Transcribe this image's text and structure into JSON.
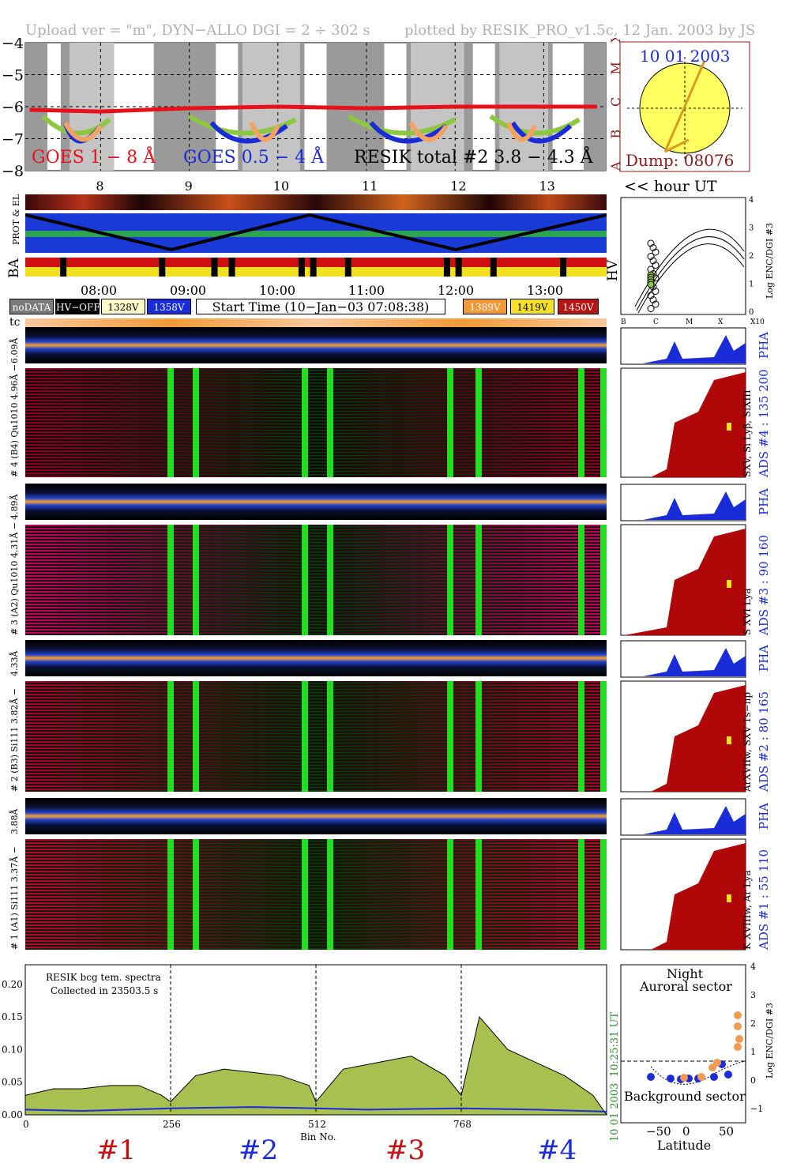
{
  "header": {
    "left": "Upload ver = \"m\", DYN−ALLO DGI =   2 ÷ 302 s",
    "right": "plotted by RESIK_PRO_v1.5c, 12 Jan. 2003 by JS"
  },
  "goes": {
    "label_goes18": "GOES 1 − 8 Å",
    "label_goes054": "GOES 0.5 − 4 Å",
    "label_resik": "RESIK total #2  3.8 − 4.3 Å",
    "yticks": [
      "−4",
      "−5",
      "−6",
      "−7",
      "−8"
    ],
    "xticks": [
      "8",
      "9",
      "10",
      "11",
      "12",
      "13"
    ],
    "class_letters": [
      "X",
      "M",
      "C",
      "B",
      "A"
    ],
    "hour_ut": "<< hour UT",
    "colors": {
      "goes18": "#e8101a",
      "goes054": "#1a2cd8",
      "resik": "#000000",
      "phase_green": "#8dc63f",
      "phase_orange": "#f4a261"
    }
  },
  "sun": {
    "date": "10 01 2003",
    "dump": "Dump: 08076"
  },
  "strips": {
    "prot_el": "PROT & EL",
    "ba": "BA",
    "hv": "HV"
  },
  "time_axis": {
    "ticks": [
      "08:00",
      "09:00",
      "10:00",
      "11:00",
      "12:00",
      "13:00"
    ]
  },
  "legend": {
    "nodata": "noDATA",
    "hvoff": "HV−OFF",
    "v1328": "1328V",
    "v1358": "1358V",
    "start_time": "Start Time (10−Jan−03 07:08:38)",
    "v1389": "1389V",
    "v1419": "1419V",
    "v1450": "1450V"
  },
  "hv_panel": {
    "ylabel": "Log ENC/DGI #3",
    "yticks": [
      "4",
      "3",
      "2",
      "1",
      "0"
    ],
    "xticks": [
      "B",
      "C",
      "M",
      "X",
      "X10"
    ]
  },
  "tc_label": "tc",
  "channels": [
    {
      "id": "4",
      "left_pha": "6.09Å",
      "left_main": "# 4 (B4) Qu1010 4.96Å −",
      "right_ion": "SXV, Si Lyβ, SiXIII",
      "ads": "ADS #4 :  135 200",
      "pha": "PHA"
    },
    {
      "id": "3",
      "left_pha": "4.89Å",
      "left_main": "# 3 (A2) Qu1010 4.31Å −",
      "right_ion": "S XVI Lya",
      "ads": "ADS #3 :   90 160",
      "pha": "PHA"
    },
    {
      "id": "2",
      "left_pha": "4.33Å",
      "left_main": "# 2 (B3) Si111 3.82Å −",
      "right_ion": "ArXVIIw, SXV 1s−np",
      "ads": "ADS #2 :   80 165",
      "pha": "PHA"
    },
    {
      "id": "1",
      "left_pha": "3.88Å",
      "left_main": "# 1 (A1) Si111 3.37Å −",
      "right_ion": "K XVIIIw, Ar Lya",
      "ads": "ADS #1 :   55 110",
      "pha": "PHA"
    }
  ],
  "bottom": {
    "note_line1": "RESIK bcg tem. spectra",
    "note_line2": "Collected in 23503.5 s",
    "xlabel": "Bin No.",
    "xticks": [
      "0",
      "256",
      "512",
      "768"
    ],
    "yticks": [
      "0.20",
      "0.15",
      "0.10",
      "0.05",
      "0.00"
    ],
    "right_time": "10:25:31 UT",
    "right_date": "10 01 2003",
    "segments": [
      "#1",
      "#2",
      "#3",
      "#4"
    ]
  },
  "lat_panel": {
    "title1": "Night",
    "title2": "Auroral sector",
    "bg": "Background sector",
    "xlabel": "Latitude",
    "xticks": [
      "−50",
      "0",
      "50"
    ],
    "yticks": [
      "4",
      "3",
      "2",
      "1",
      "0",
      "−1"
    ],
    "ylabel": "Log ENC/DGI #3"
  },
  "chart_data": [
    {
      "type": "line",
      "title": "",
      "ylim": [
        -8,
        -4
      ],
      "xlim": [
        7.15,
        13.7
      ],
      "series": [
        {
          "name": "GOES 1 − 8 Å",
          "x": [
            7.2,
            8,
            9,
            10,
            11,
            12,
            13,
            13.6
          ],
          "values": [
            -6.1,
            -6.15,
            -6.05,
            -6.0,
            -6.05,
            -6.0,
            -6.0,
            -6.0
          ]
        }
      ]
    },
    {
      "type": "area",
      "title": "",
      "xlabel": "Bin No.",
      "ylim": [
        0,
        0.23
      ],
      "xlim": [
        0,
        1024
      ],
      "series": [
        {
          "x": [
            0,
            50,
            100,
            150,
            200,
            240,
            256,
            300,
            350,
            400,
            450,
            500,
            512,
            560,
            620,
            680,
            740,
            768,
            800,
            850,
            900,
            950,
            1000,
            1024
          ],
          "values": [
            0.03,
            0.04,
            0.04,
            0.045,
            0.045,
            0.03,
            0.02,
            0.06,
            0.07,
            0.065,
            0.06,
            0.045,
            0.02,
            0.07,
            0.08,
            0.09,
            0.06,
            0.03,
            0.15,
            0.1,
            0.08,
            0.06,
            0.03,
            0.0
          ]
        },
        {
          "x": [
            0,
            100,
            256,
            400,
            512,
            600,
            768,
            900,
            1024
          ],
          "values": [
            0.008,
            0.006,
            0.01,
            0.012,
            0.01,
            0.008,
            0.01,
            0.008,
            0.005
          ]
        }
      ]
    }
  ]
}
